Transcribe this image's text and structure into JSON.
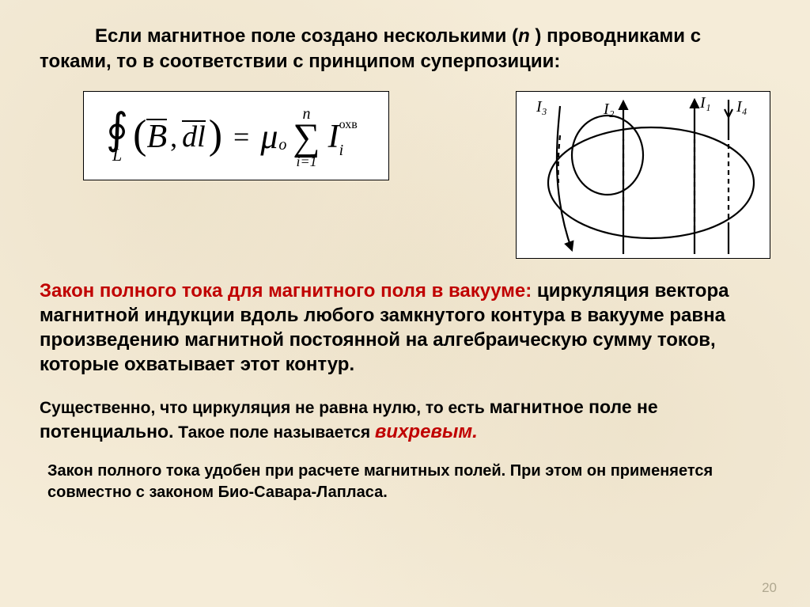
{
  "intro": {
    "prefix": "Если магнитное поле создано несколькими (",
    "var": "n",
    "suffix": " ) проводниками с токами, то в соответствии с принципом суперпозиции:"
  },
  "formula": {
    "integral_symbol": "∮",
    "integral_sub": "L",
    "lparen": "(",
    "B": "B",
    "comma": ",",
    "dl": "dl",
    "rparen": ")",
    "equals": "=",
    "mu": "μ",
    "mu_sub": "o",
    "sum_top": "n",
    "sum_symbol": "∑",
    "sum_bottom": "i=1",
    "I": "I",
    "I_sup": "охв",
    "I_sub": "i"
  },
  "diagram": {
    "labels": {
      "I1": "I₁",
      "I2": "I₂",
      "I3": "I₃",
      "I4": "I₄"
    },
    "stroke": "#000000",
    "stroke_width": 2.2,
    "dash": "6,5",
    "font_family": "Times New Roman, serif",
    "font_size": 20,
    "font_style": "italic"
  },
  "law": {
    "title": "Закон полного тока для магнитного поля в вакууме:",
    "body": " циркуляция вектора магнитной индукции вдоль любого замкнутого контура в вакууме равна произведению магнитной постоянной на алгебраическую сумму токов, которые охватывает этот контур."
  },
  "note1": {
    "p1": "Существенно, что циркуляция не равна нулю, то есть ",
    "p2": "магнитное поле не потенциально.",
    "p3": " Такое поле называется ",
    "vortex": "вихревым.",
    "period": ""
  },
  "note2": "Закон полного тока удобен при расчете магнитных полей. При этом он применяется совместно с законом Био-Савара-Лапласа.",
  "page_number": "20",
  "colors": {
    "background": "#f5ecd8",
    "text": "#000000",
    "accent": "#c00000",
    "page_num": "#b0a890",
    "box_bg": "#ffffff"
  }
}
